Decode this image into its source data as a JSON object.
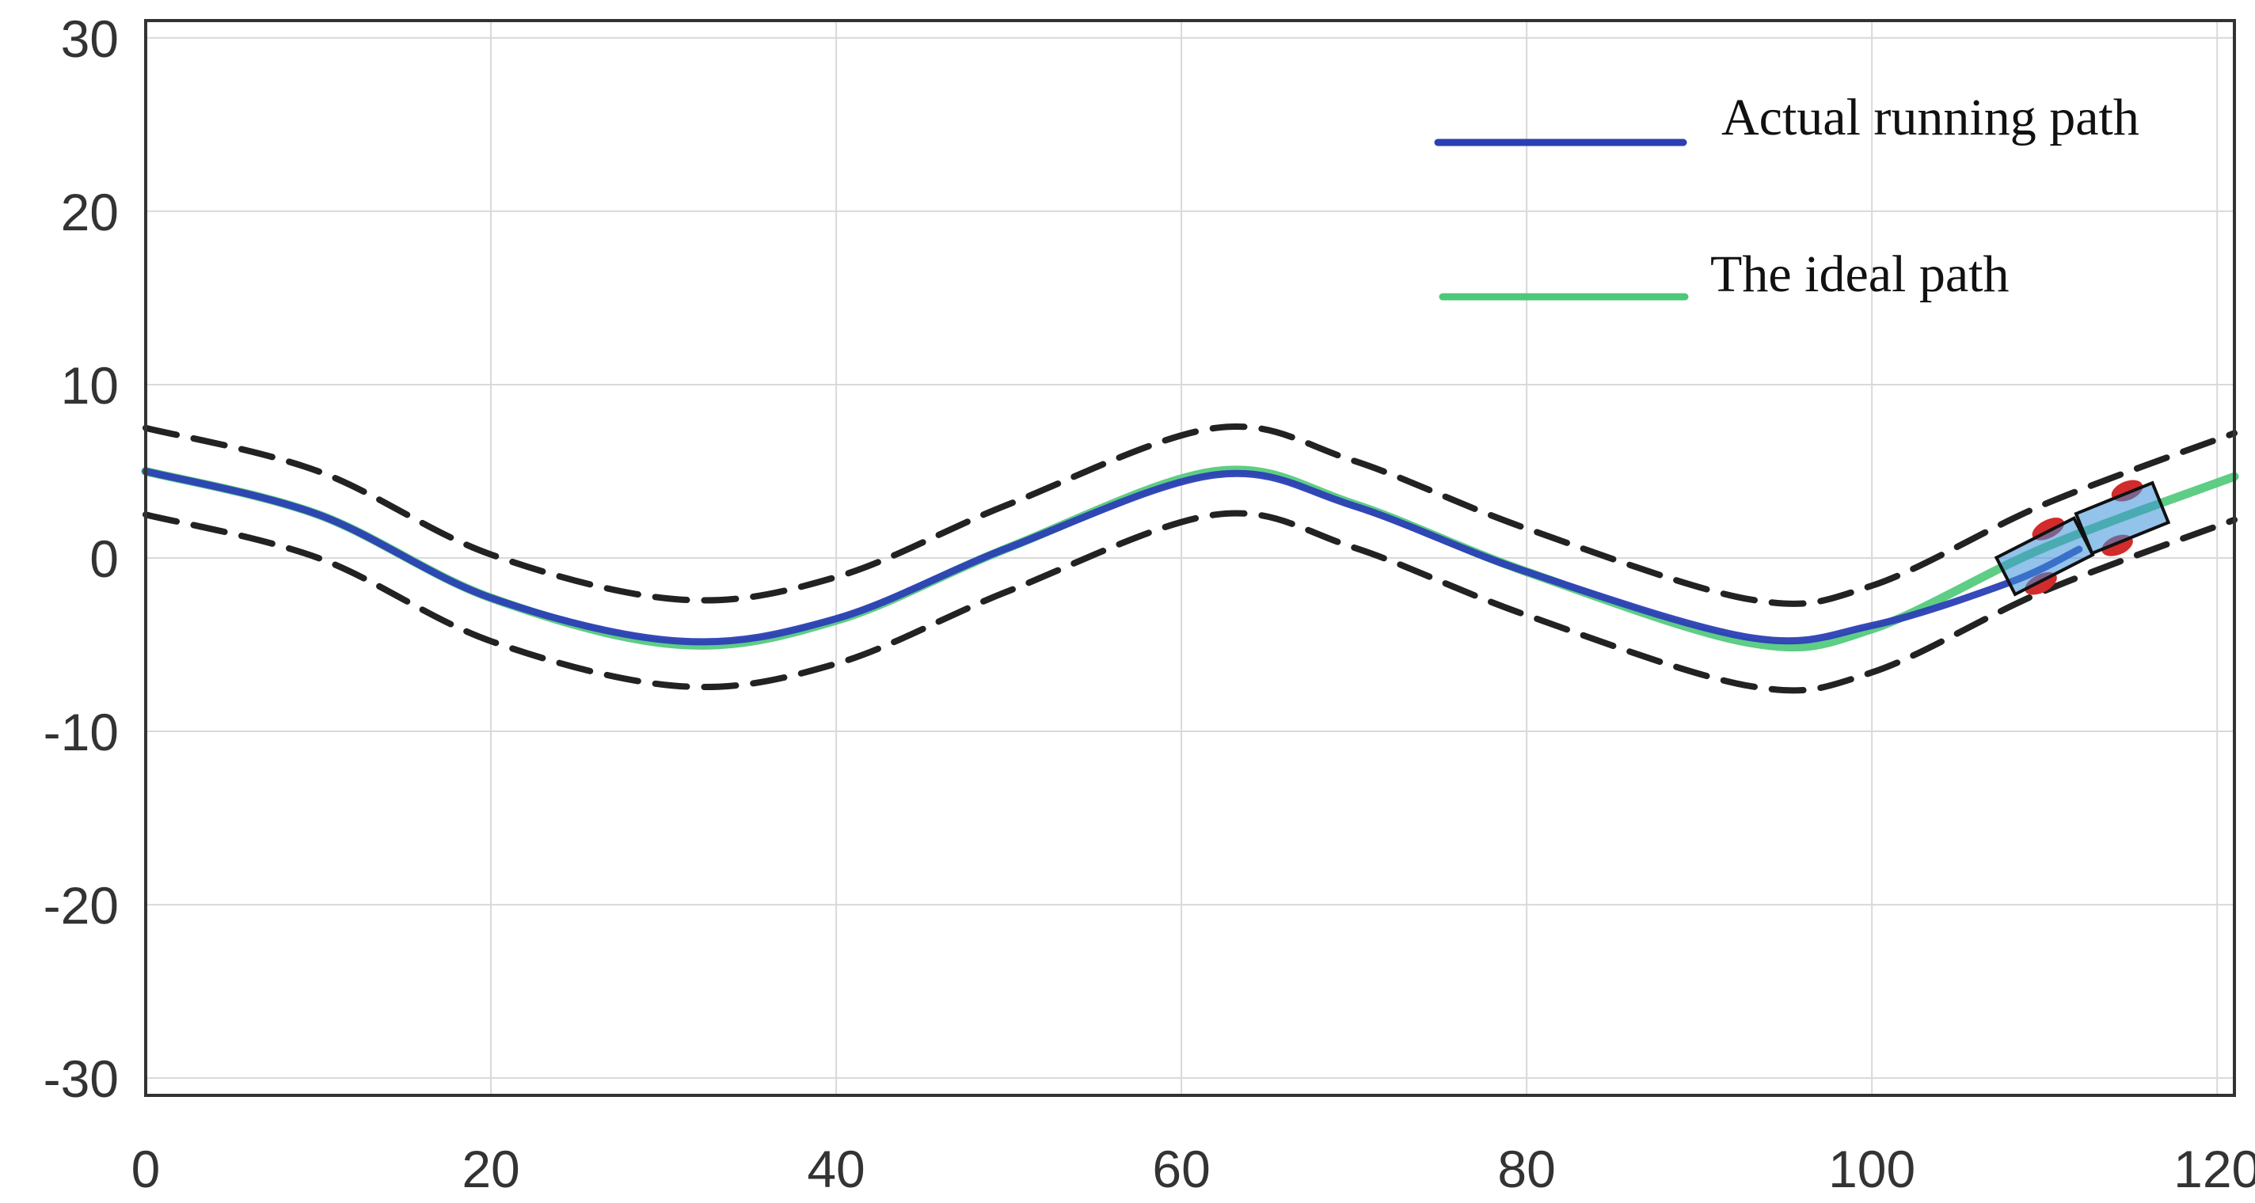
{
  "chart_data": {
    "type": "line",
    "title": "",
    "xlabel": "",
    "ylabel": "",
    "xlim": [
      0,
      121
    ],
    "ylim": [
      -31,
      31
    ],
    "x_ticks": [
      0,
      20,
      40,
      60,
      80,
      100,
      120
    ],
    "y_ticks": [
      30,
      20,
      10,
      0,
      -10,
      -20,
      -30
    ],
    "x_tick_labels": [
      "0",
      "20",
      "40",
      "60",
      "80",
      "100",
      "120"
    ],
    "y_tick_labels": [
      "30",
      "20",
      "10",
      "0",
      "-10",
      "-20",
      "-30"
    ],
    "grid": true,
    "legend_position": "top-right",
    "series": [
      {
        "name": "Actual running path",
        "color": "#2b3fb5",
        "x": [
          0,
          10,
          20,
          31,
          40,
          50,
          62,
          70,
          80,
          93,
          100,
          108,
          112
        ],
        "y": [
          5,
          2.5,
          -2.3,
          -4.8,
          -3.5,
          0.6,
          4.8,
          3.0,
          -0.8,
          -4.6,
          -3.9,
          -1.4,
          0.5
        ]
      },
      {
        "name": "The ideal path",
        "color": "#4cc878",
        "x": [
          0,
          10,
          20,
          31,
          40,
          50,
          62,
          70,
          80,
          93,
          100,
          110,
          121
        ],
        "y": [
          5,
          2.5,
          -2.3,
          -5,
          -3.6,
          0.6,
          5,
          3.1,
          -0.8,
          -4.9,
          -4.1,
          0.6,
          4.7
        ]
      }
    ],
    "boundaries": [
      {
        "x": [
          0,
          10,
          20,
          31,
          40,
          50,
          62,
          70,
          80,
          93,
          100,
          110,
          121
        ],
        "y": [
          7.5,
          5,
          0.2,
          -2.4,
          -1.1,
          3.1,
          7.5,
          5.6,
          1.7,
          -2.4,
          -1.6,
          3.1,
          7.2
        ]
      },
      {
        "x": [
          0,
          10,
          20,
          31,
          40,
          50,
          62,
          70,
          80,
          93,
          100,
          110,
          121
        ],
        "y": [
          2.5,
          0,
          -4.8,
          -7.4,
          -6.1,
          -1.9,
          2.5,
          0.6,
          -3.3,
          -7.4,
          -6.6,
          -1.9,
          2.2
        ]
      }
    ],
    "vehicle": {
      "tractor": {
        "x": 114.5,
        "y": 2.3,
        "angle_deg": 22
      },
      "trailer": {
        "x": 110,
        "y": 0.1,
        "angle_deg": 27
      },
      "body_color": "#3a8fd9",
      "wheel_color": "#d22b2b",
      "outline_color": "#111111"
    }
  }
}
